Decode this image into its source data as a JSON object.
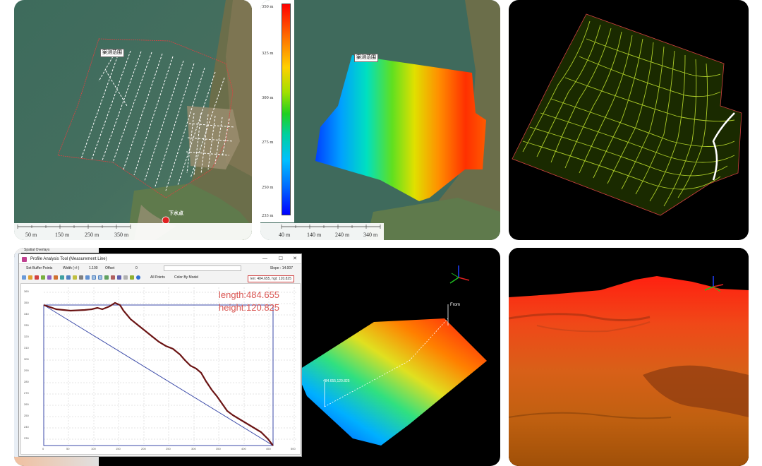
{
  "panel1": {
    "survey_area_label": "案测范围",
    "landing_label": "下水点",
    "scale_labels": [
      "50 m",
      "150 m",
      "250 m",
      "350 m"
    ]
  },
  "panel2": {
    "survey_area_label": "案测范围",
    "legend_labels": [
      "350 m",
      "325 m",
      "300 m",
      "275 m",
      "250 m",
      "233 m"
    ],
    "scale_labels": [
      "40 m",
      "140 m",
      "240 m",
      "340 m"
    ]
  },
  "panel4": {
    "sidebar_title": "Spatial Overlays",
    "window_title": "Profile Analysis Tool (Measurement Line)",
    "window_controls": [
      "—",
      "☐",
      "✕"
    ],
    "toolbar1": {
      "set_buffer": "Set Buffer Points",
      "width_label": "Width (+/-)",
      "width_value": "1.100",
      "offset_label": "Offset",
      "offset_value": "0",
      "slope_label": "Slope : 14.007"
    },
    "toolbar2": {
      "all_points": "All Points",
      "color_by_model": "Color By Model"
    },
    "measure_readout": "len: 484.655, hgt: 120.825",
    "length_text": "length:484.655",
    "height_text": "height:120.825",
    "y_ticks": [
      "360",
      "350",
      "340",
      "330",
      "320",
      "310",
      "300",
      "290",
      "280",
      "270",
      "260",
      "250",
      "240",
      "230"
    ],
    "x_ticks": [
      "0",
      "50",
      "100",
      "150",
      "200",
      "250",
      "300",
      "350",
      "400",
      "450",
      "500"
    ],
    "from_label": "From",
    "to_label": "484.655,120.825"
  },
  "colors": {
    "profile_line": "#6b1414",
    "baseline": "#3b4aa8",
    "accent_red": "#d9534f"
  }
}
